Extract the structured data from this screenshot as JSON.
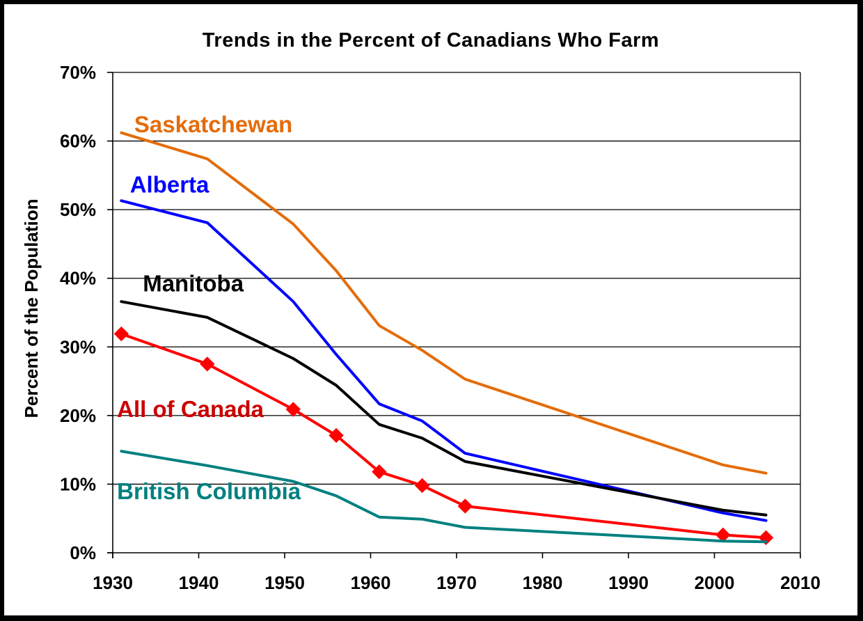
{
  "chart_data": {
    "type": "line",
    "title": "Trends in the Percent of Canadians Who Farm",
    "xlabel": "",
    "ylabel": "Percent of the Population",
    "xlim": [
      1930,
      2010
    ],
    "ylim": [
      0,
      70
    ],
    "x_ticks": [
      1930,
      1940,
      1950,
      1960,
      1970,
      1980,
      1990,
      2000,
      2010
    ],
    "x_tick_labels": [
      "1930",
      "1940",
      "1950",
      "1960",
      "1970",
      "1980",
      "1990",
      "2000",
      "2010"
    ],
    "y_ticks": [
      0,
      10,
      20,
      30,
      40,
      50,
      60,
      70
    ],
    "y_tick_labels": [
      "0%",
      "10%",
      "20%",
      "30%",
      "40%",
      "50%",
      "60%",
      "70%"
    ],
    "grid": "horizontal",
    "legend": "inline labels",
    "series": [
      {
        "name": "Saskatchewan",
        "color": "#E46C0A",
        "markers": false,
        "label_anchor": [
          1932.5,
          61.3
        ],
        "points": [
          [
            1931,
            61.2
          ],
          [
            1941,
            57.4
          ],
          [
            1951,
            47.9
          ],
          [
            1956,
            41.1
          ],
          [
            1961,
            33.1
          ],
          [
            1966,
            29.5
          ],
          [
            1971,
            25.3
          ],
          [
            2001,
            12.8
          ],
          [
            2006,
            11.6
          ]
        ]
      },
      {
        "name": "Alberta",
        "color": "#0000FF",
        "markers": false,
        "label_anchor": [
          1932,
          52.5
        ],
        "points": [
          [
            1931,
            51.3
          ],
          [
            1941,
            48.1
          ],
          [
            1951,
            36.6
          ],
          [
            1956,
            28.9
          ],
          [
            1961,
            21.7
          ],
          [
            1966,
            19.2
          ],
          [
            1971,
            14.5
          ],
          [
            2001,
            5.8
          ],
          [
            2006,
            4.7
          ]
        ]
      },
      {
        "name": "Manitoba",
        "color": "#000000",
        "markers": false,
        "label_anchor": [
          1933.5,
          38.1
        ],
        "points": [
          [
            1931,
            36.6
          ],
          [
            1941,
            34.3
          ],
          [
            1951,
            28.3
          ],
          [
            1956,
            24.4
          ],
          [
            1961,
            18.7
          ],
          [
            1966,
            16.7
          ],
          [
            1971,
            13.3
          ],
          [
            2001,
            6.2
          ],
          [
            2006,
            5.5
          ]
        ]
      },
      {
        "name": "All of Canada",
        "color": "#FF0000",
        "markers": true,
        "label_color": "#CC0000",
        "label_anchor": [
          1930.5,
          19.8
        ],
        "points": [
          [
            1931,
            31.9
          ],
          [
            1941,
            27.5
          ],
          [
            1951,
            20.9
          ],
          [
            1956,
            17.1
          ],
          [
            1961,
            11.8
          ],
          [
            1966,
            9.8
          ],
          [
            1971,
            6.8
          ],
          [
            2001,
            2.6
          ],
          [
            2006,
            2.2
          ]
        ]
      },
      {
        "name": "British Columbia",
        "color": "#008080",
        "markers": false,
        "label_anchor": [
          1930.5,
          7.8
        ],
        "points": [
          [
            1931,
            14.8
          ],
          [
            1941,
            12.7
          ],
          [
            1951,
            10.4
          ],
          [
            1956,
            8.3
          ],
          [
            1961,
            5.2
          ],
          [
            1966,
            4.9
          ],
          [
            1971,
            3.7
          ],
          [
            2001,
            1.7
          ],
          [
            2006,
            1.6
          ]
        ]
      }
    ]
  }
}
